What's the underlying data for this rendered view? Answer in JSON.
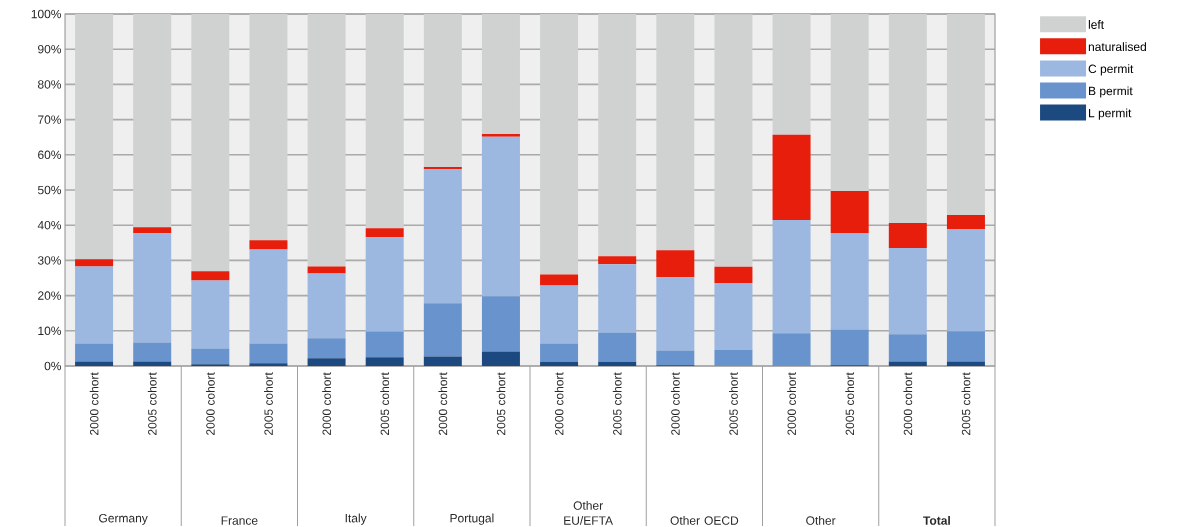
{
  "chart_data": {
    "type": "bar",
    "stacked": true,
    "categories": [
      "2000 cohort",
      "2005 cohort",
      "2000 cohort",
      "2005 cohort",
      "2000 cohort",
      "2005 cohort",
      "2000 cohort",
      "2005 cohort",
      "2000 cohort",
      "2005 cohort",
      "2000 cohort",
      "2005 cohort",
      "2000 cohort",
      "2005 cohort",
      "2000 cohort",
      "2005 cohort"
    ],
    "series": [
      {
        "name": "L permit",
        "color": "#1c4a80",
        "values": [
          1.3,
          1.3,
          0.5,
          0.8,
          2.2,
          2.5,
          2.7,
          4.1,
          1.2,
          1.2,
          0.2,
          null,
          0,
          0.2,
          1.3,
          1.3
        ]
      },
      {
        "name": "B permit",
        "color": "#6993cc",
        "values": [
          5.1,
          5.4,
          4.5,
          5.6,
          5.7,
          7.3,
          15.1,
          15.7,
          5.2,
          8.3,
          4.2,
          4.6,
          9.3,
          10.2,
          7.7,
          8.6
        ]
      },
      {
        "name": "C permit",
        "color": "#9cb8e0",
        "values": [
          21.9,
          31.0,
          19.3,
          26.7,
          18.4,
          26.8,
          38.1,
          45.3,
          16.5,
          19.4,
          20.8,
          19.0,
          32.2,
          27.4,
          24.5,
          29.0
        ]
      },
      {
        "name": "naturalised",
        "color": "#e61e0b",
        "values": [
          2.0,
          1.7,
          2.6,
          2.6,
          2.0,
          2.5,
          0.6,
          0.8,
          3.1,
          2.3,
          7.7,
          4.6,
          24.2,
          11.9,
          7.1,
          4.0
        ]
      },
      {
        "name": "left",
        "color": "#d0d2d1",
        "values": [
          69.7,
          60.6,
          73.1,
          64.3,
          71.7,
          60.9,
          43.5,
          34.1,
          74.0,
          68.8,
          67.1,
          71.7,
          34.3,
          50.3,
          59.4,
          57.1
        ]
      }
    ],
    "ylim": [
      0,
      100
    ],
    "yticks": [
      {
        "value": 0,
        "label": "0%"
      },
      {
        "value": 10,
        "label": "10%"
      },
      {
        "value": 20,
        "label": "20%"
      },
      {
        "value": 30,
        "label": "30%"
      },
      {
        "value": 40,
        "label": "40%"
      },
      {
        "value": 50,
        "label": "50%"
      },
      {
        "value": 60,
        "label": "60%"
      },
      {
        "value": 70,
        "label": "70%"
      },
      {
        "value": 80,
        "label": "80%"
      },
      {
        "value": 90,
        "label": "90%"
      },
      {
        "value": 100,
        "label": "100%"
      }
    ],
    "grid": "y",
    "legend": "right",
    "annotations": [
      "Germany",
      "France",
      "Italy",
      "Portugal",
      "Other EU/EFTA",
      "Other OECD",
      "Other",
      "**Total**"
    ]
  }
}
